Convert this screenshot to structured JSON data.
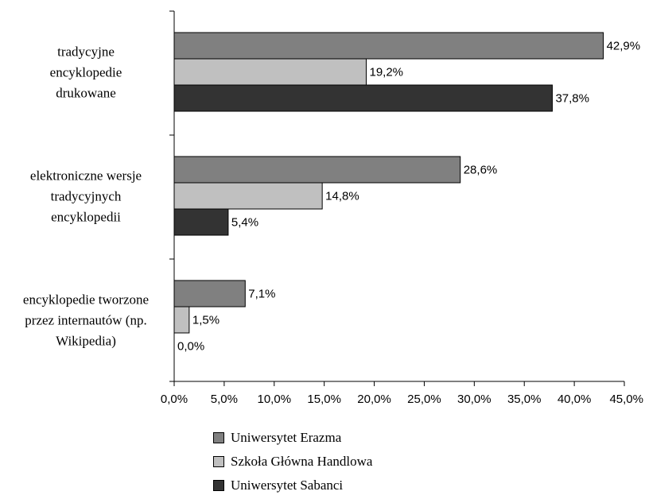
{
  "chart_data": {
    "type": "bar",
    "orientation": "horizontal",
    "categories": [
      "tradycyjne encyklopedie drukowane",
      "elektroniczne wersje tradycyjnych encyklopedii",
      "encyklopedie tworzone przez internautów (np. Wikipedia)"
    ],
    "category_lines": [
      [
        "tradycyjne",
        "encyklopedie",
        "drukowane"
      ],
      [
        "elektroniczne wersje",
        "tradycyjnych",
        "encyklopedii"
      ],
      [
        "encyklopedie tworzone",
        "przez internautów (np.",
        "Wikipedia)"
      ]
    ],
    "series": [
      {
        "name": "Uniwersytet Erazma",
        "color": "#808080",
        "values": [
          42.9,
          28.6,
          7.1
        ],
        "labels": [
          "42,9%",
          "28,6%",
          "7,1%"
        ]
      },
      {
        "name": "Szkoła Główna Handlowa",
        "color": "#c0c0c0",
        "values": [
          19.2,
          14.8,
          1.5
        ],
        "labels": [
          "19,2%",
          "14,8%",
          "1,5%"
        ]
      },
      {
        "name": "Uniwersytet Sabanci",
        "color": "#333333",
        "values": [
          37.8,
          5.4,
          0.0
        ],
        "labels": [
          "37,8%",
          "5,4%",
          "0,0%"
        ]
      }
    ],
    "x_ticks": [
      0,
      5,
      10,
      15,
      20,
      25,
      30,
      35,
      40,
      45
    ],
    "x_tick_labels": [
      "0,0%",
      "5,0%",
      "10,0%",
      "15,0%",
      "20,0%",
      "25,0%",
      "30,0%",
      "35,0%",
      "40,0%",
      "45,0%"
    ],
    "xlim": [
      0,
      45
    ],
    "grid": false,
    "legend_position": "bottom"
  }
}
